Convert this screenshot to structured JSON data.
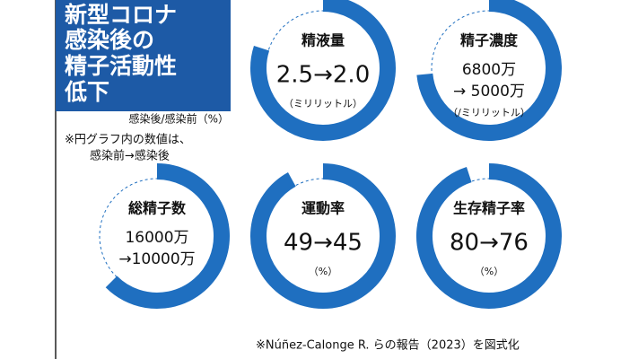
{
  "header": {
    "title": [
      "新型コロナ",
      "感染後の",
      "精子活動性",
      "低下"
    ],
    "subtitle": "感染後/感染前（%）",
    "note": [
      "※円グラフ内の数値は、",
      "感染前→感染後"
    ]
  },
  "source": "※Núñez-Calonge R. らの報告（2023）を図式化",
  "chart_data": [
    {
      "type": "donut",
      "title": "精液量",
      "label": [
        "2.5→2.0"
      ],
      "unit": "（ミリリットル）",
      "value": 80,
      "color": "#1f6fc0"
    },
    {
      "type": "donut",
      "title": "精子濃度",
      "label": [
        "6800万",
        "→ 5000万"
      ],
      "unit": "（/ミリリットル）",
      "value": 73.5,
      "color": "#1f6fc0"
    },
    {
      "type": "donut",
      "title": "総精子数",
      "label": [
        "16000万",
        "→10000万"
      ],
      "value": 62.5,
      "color": "#1f6fc0"
    },
    {
      "type": "donut",
      "title": "運動率",
      "label": [
        "49→45"
      ],
      "unit": "（%）",
      "value": 92,
      "color": "#1f6fc0"
    },
    {
      "type": "donut",
      "title": "生存精子率",
      "label": [
        "80→76"
      ],
      "unit": "（%）",
      "value": 95,
      "color": "#1f6fc0"
    }
  ]
}
